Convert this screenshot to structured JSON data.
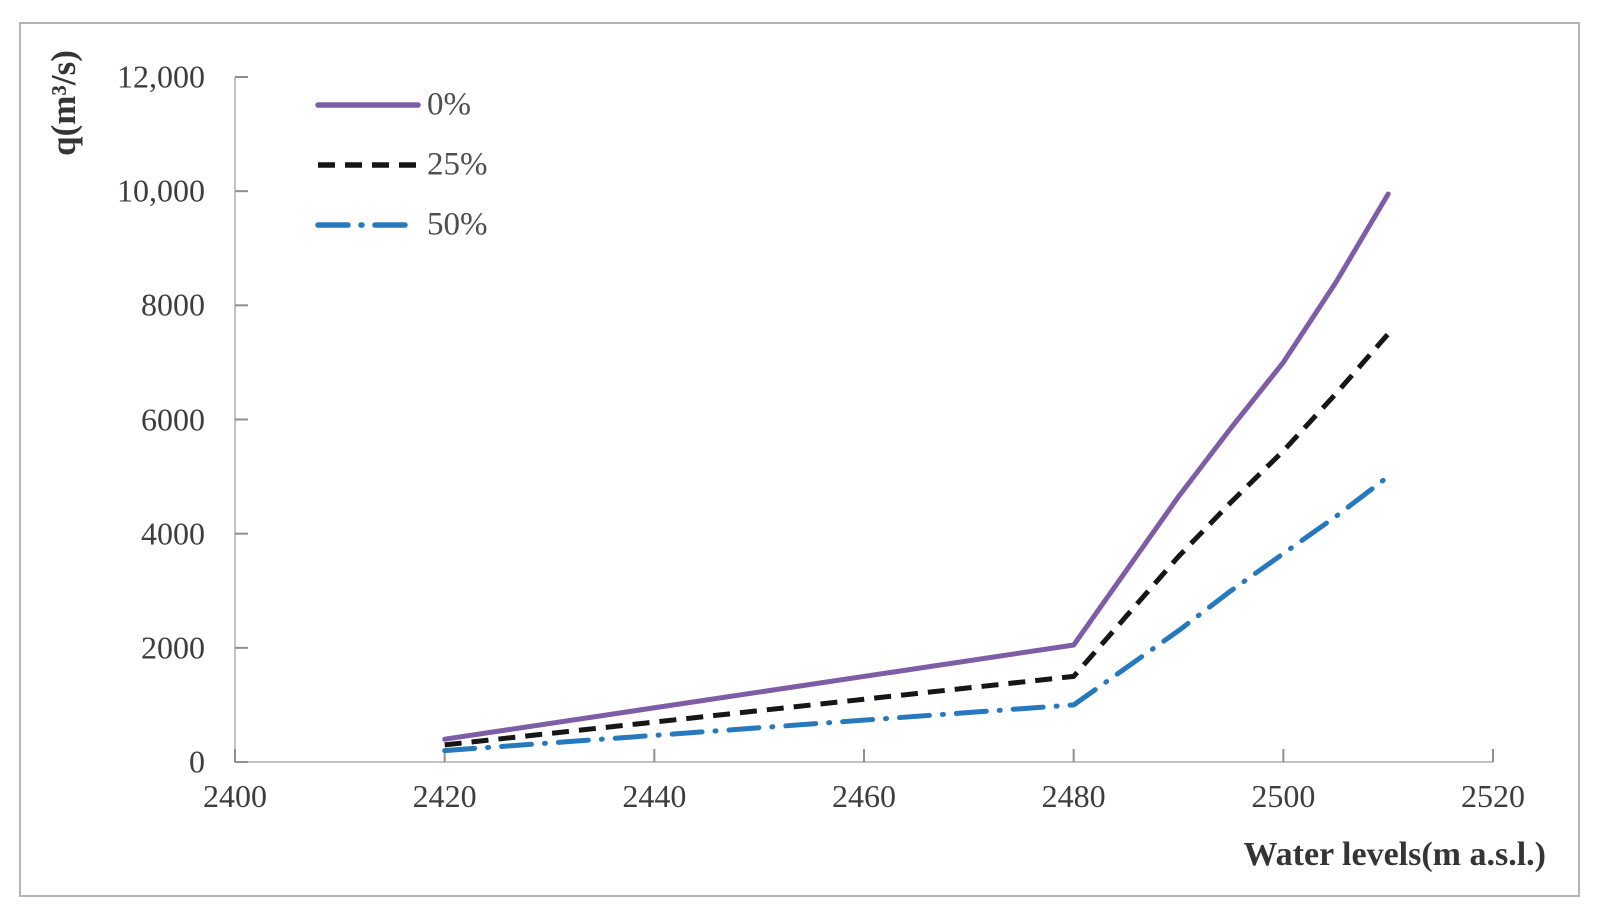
{
  "figure": {
    "y_axis_title": "q(m³/s)",
    "x_axis_title": "Water levels(m a.s.l.)"
  },
  "colors": {
    "series_0pct": "#7e5ca6",
    "series_25pct": "#161616",
    "series_50pct": "#2779be",
    "axis_line": "#c3c3c3",
    "tick_mark": "#8f8f8f",
    "tick_text": "#3d3d3d",
    "border": "#b4b4b4"
  },
  "chart_data": {
    "type": "line",
    "title": "",
    "xlabel": "Water levels(m a.s.l.)",
    "ylabel": "q(m³/s)",
    "xlim": [
      2400,
      2520
    ],
    "ylim": [
      0,
      12000
    ],
    "grid": false,
    "legend_position": "top-left-inside",
    "x_ticks": [
      2400,
      2420,
      2440,
      2460,
      2480,
      2500,
      2520
    ],
    "x_tick_labels": [
      "2400",
      "2420",
      "2440",
      "2460",
      "2480",
      "2500",
      "2520"
    ],
    "y_ticks": [
      0,
      2000,
      4000,
      6000,
      8000,
      10000,
      12000
    ],
    "y_tick_labels": [
      "0",
      "2000",
      "4000",
      "6000",
      "8000",
      "10,000",
      "12,000"
    ],
    "series": [
      {
        "name": "0%",
        "color": "#7e5ca6",
        "line_style": "solid",
        "x": [
          2420,
          2480,
          2485,
          2490,
          2495,
          2500,
          2505,
          2510
        ],
        "y": [
          400,
          2050,
          3350,
          4650,
          5850,
          7000,
          8400,
          9950
        ]
      },
      {
        "name": "25%",
        "color": "#161616",
        "line_style": "dashed",
        "x": [
          2420,
          2480,
          2485,
          2490,
          2495,
          2500,
          2505,
          2510
        ],
        "y": [
          300,
          1500,
          2550,
          3600,
          4550,
          5450,
          6450,
          7500
        ]
      },
      {
        "name": "50%",
        "color": "#2779be",
        "line_style": "dash-dot",
        "x": [
          2420,
          2480,
          2485,
          2490,
          2495,
          2500,
          2505,
          2510
        ],
        "y": [
          200,
          1000,
          1650,
          2300,
          3000,
          3650,
          4300,
          5000
        ]
      }
    ]
  }
}
